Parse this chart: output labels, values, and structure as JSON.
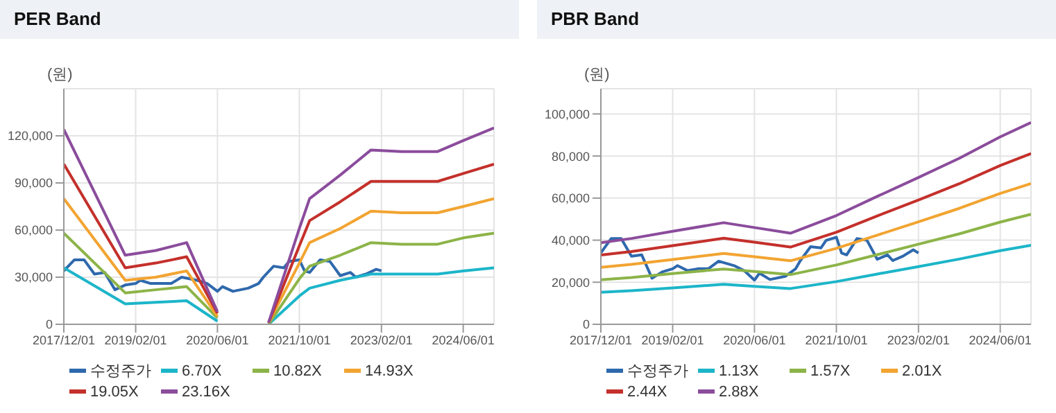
{
  "chart_data": [
    {
      "type": "line",
      "title": "PER Band",
      "ylabel": "(원)",
      "grid": true,
      "legend": "bottom",
      "marker": "none",
      "line_style": "solid",
      "x": [
        "2017-12",
        "2018-12",
        "2019-06",
        "2019-12",
        "2020-06",
        "2020-10",
        "2021-04",
        "2021-10",
        "2021-12",
        "2022-06",
        "2022-12",
        "2023-06",
        "2024-01",
        "2024-06",
        "2024-12"
      ],
      "xlim": [
        "2017-12-01",
        "2024-12-01"
      ],
      "xticks": [
        {
          "value": "2017-12-01",
          "label": "2017/12/01"
        },
        {
          "value": "2019-02-01",
          "label": "2019/02/01"
        },
        {
          "value": "2020-06-01",
          "label": "2020/06/01"
        },
        {
          "value": "2021-10-01",
          "label": "2021/10/01"
        },
        {
          "value": "2023-02-01",
          "label": "2023/02/01"
        },
        {
          "value": "2024-06-01",
          "label": "2024/06/01"
        }
      ],
      "ylim": [
        0,
        150000
      ],
      "yticks": [
        {
          "value": 0,
          "label": "0"
        },
        {
          "value": 30000,
          "label": "30,000"
        },
        {
          "value": 60000,
          "label": "60,000"
        },
        {
          "value": 90000,
          "label": "90,000"
        },
        {
          "value": 120000,
          "label": "120,000"
        }
      ],
      "series": [
        {
          "name": "수정주가",
          "color": "#2f69ad",
          "x": [
            "2017-12",
            "2018-02",
            "2018-04",
            "2018-06",
            "2018-08",
            "2018-10",
            "2018-12",
            "2019-02",
            "2019-03",
            "2019-05",
            "2019-07",
            "2019-09",
            "2019-11",
            "2020-02",
            "2020-04",
            "2020-06",
            "2020-07",
            "2020-09",
            "2020-12",
            "2021-02",
            "2021-03",
            "2021-05",
            "2021-07",
            "2021-08",
            "2021-10",
            "2021-11",
            "2021-12",
            "2022-02",
            "2022-04",
            "2022-06",
            "2022-08",
            "2022-09",
            "2022-11",
            "2023-01",
            "2023-02"
          ],
          "values": [
            34000,
            41000,
            41000,
            32000,
            33000,
            22000,
            25000,
            26000,
            28000,
            26000,
            26000,
            26000,
            30000,
            28000,
            26000,
            21000,
            24000,
            21000,
            23000,
            26000,
            30000,
            37000,
            36000,
            40000,
            41000,
            34000,
            33000,
            41000,
            40000,
            31000,
            33000,
            30000,
            32000,
            35000,
            34000
          ]
        },
        {
          "name": "6.70X",
          "color": "#1cb5c9",
          "values": [
            36000,
            13000,
            14000,
            15000,
            2000,
            null,
            0,
            18000,
            23000,
            28000,
            32000,
            32000,
            32000,
            34000,
            36000
          ]
        },
        {
          "name": "10.82X",
          "color": "#8cb448",
          "values": [
            58000,
            20000,
            22000,
            24000,
            4000,
            null,
            0,
            29000,
            37000,
            44000,
            52000,
            51000,
            51000,
            55000,
            58000
          ]
        },
        {
          "name": "14.93X",
          "color": "#f2a431",
          "values": [
            80000,
            28000,
            30000,
            34000,
            5000,
            null,
            1000,
            39000,
            52000,
            61000,
            72000,
            71000,
            71000,
            75000,
            80000
          ]
        },
        {
          "name": "19.05X",
          "color": "#c4302b",
          "values": [
            102000,
            36000,
            39000,
            43000,
            7000,
            null,
            1000,
            50000,
            66000,
            78000,
            91000,
            91000,
            91000,
            96000,
            102000
          ]
        },
        {
          "name": "23.16X",
          "color": "#8b4c9c",
          "values": [
            124000,
            44000,
            47000,
            52000,
            8000,
            null,
            1000,
            61000,
            80000,
            95000,
            111000,
            110000,
            110000,
            117000,
            125000
          ]
        }
      ]
    },
    {
      "type": "line",
      "title": "PBR Band",
      "ylabel": "(원)",
      "grid": true,
      "legend": "bottom",
      "marker": "none",
      "line_style": "solid",
      "x": [
        "2017-12",
        "2018-06",
        "2019-02",
        "2019-12",
        "2020-06",
        "2021-01",
        "2021-10",
        "2022-06",
        "2023-02",
        "2023-10",
        "2024-06",
        "2024-12"
      ],
      "xlim": [
        "2017-12-01",
        "2024-12-01"
      ],
      "xticks": [
        {
          "value": "2017-12-01",
          "label": "2017/12/01"
        },
        {
          "value": "2019-02-01",
          "label": "2019/02/01"
        },
        {
          "value": "2020-06-01",
          "label": "2020/06/01"
        },
        {
          "value": "2021-10-01",
          "label": "2021/10/01"
        },
        {
          "value": "2023-02-01",
          "label": "2023/02/01"
        },
        {
          "value": "2024-06-01",
          "label": "2024/06/01"
        }
      ],
      "ylim": [
        0,
        112000
      ],
      "yticks": [
        {
          "value": 0,
          "label": "0"
        },
        {
          "value": 20000,
          "label": "20,000"
        },
        {
          "value": 40000,
          "label": "40,000"
        },
        {
          "value": 60000,
          "label": "60,000"
        },
        {
          "value": 80000,
          "label": "80,000"
        },
        {
          "value": 100000,
          "label": "100,000"
        }
      ],
      "series": [
        {
          "name": "수정주가",
          "color": "#2f69ad",
          "x": [
            "2017-12",
            "2018-02",
            "2018-04",
            "2018-06",
            "2018-08",
            "2018-10",
            "2018-12",
            "2019-02",
            "2019-03",
            "2019-05",
            "2019-07",
            "2019-09",
            "2019-11",
            "2020-02",
            "2020-04",
            "2020-06",
            "2020-07",
            "2020-09",
            "2020-12",
            "2021-02",
            "2021-03",
            "2021-05",
            "2021-07",
            "2021-08",
            "2021-10",
            "2021-11",
            "2021-12",
            "2022-02",
            "2022-04",
            "2022-06",
            "2022-08",
            "2022-09",
            "2022-11",
            "2023-01",
            "2023-02"
          ],
          "values": [
            34000,
            40800,
            40800,
            32400,
            33000,
            21900,
            24900,
            26400,
            27900,
            25500,
            26400,
            26400,
            30000,
            27900,
            25500,
            21000,
            24300,
            21300,
            22800,
            26400,
            30300,
            36900,
            36300,
            39900,
            41400,
            33900,
            33000,
            40800,
            39900,
            30900,
            33000,
            30300,
            32400,
            35400,
            33900
          ]
        },
        {
          "name": "1.13X",
          "color": "#1cb5c9",
          "values": [
            15200,
            16000,
            17300,
            19000,
            18000,
            17000,
            20300,
            23900,
            27400,
            31000,
            35000,
            37600
          ]
        },
        {
          "name": "1.57X",
          "color": "#8cb448",
          "values": [
            21200,
            22200,
            24100,
            26300,
            25100,
            23600,
            28200,
            33100,
            38100,
            43000,
            48600,
            52300
          ]
        },
        {
          "name": "2.01X",
          "color": "#f2a431",
          "values": [
            27100,
            28500,
            30800,
            33700,
            32100,
            30200,
            36100,
            42400,
            48700,
            55100,
            62200,
            66900
          ]
        },
        {
          "name": "2.44X",
          "color": "#c4302b",
          "values": [
            32900,
            34600,
            37400,
            40900,
            39000,
            36700,
            43800,
            51500,
            59100,
            66800,
            75500,
            81200
          ]
        },
        {
          "name": "2.88X",
          "color": "#8b4c9c",
          "values": [
            38800,
            40800,
            44200,
            48300,
            46000,
            43300,
            51700,
            60800,
            69800,
            78900,
            89100,
            95900
          ]
        }
      ]
    }
  ]
}
